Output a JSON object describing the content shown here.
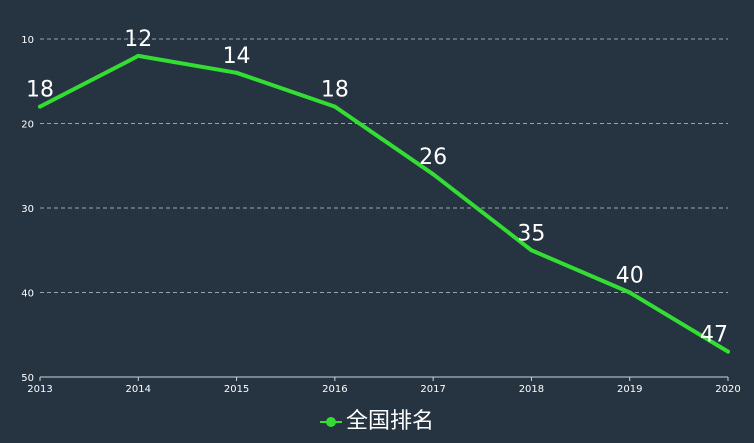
{
  "chart_data": {
    "type": "line",
    "x": [
      "2013",
      "2014",
      "2015",
      "2016",
      "2017",
      "2018",
      "2019",
      "2020"
    ],
    "series": [
      {
        "name": "全国排名",
        "values": [
          18,
          12,
          14,
          18,
          26,
          35,
          40,
          47
        ],
        "color": "#33dd33"
      }
    ],
    "y_ticks": [
      "10",
      "20",
      "30",
      "40",
      "50"
    ],
    "ylim": [
      10,
      50
    ],
    "y_inverted": true,
    "grid": "horizontal-dashed",
    "data_labels": true,
    "legend_position": "bottom-center"
  },
  "legend": {
    "label": "全国排名"
  },
  "colors": {
    "background": "#263340",
    "series": "#33dd33",
    "grid": "#9aa4ad",
    "axis": "#cfd6dc",
    "text": "#ffffff"
  }
}
